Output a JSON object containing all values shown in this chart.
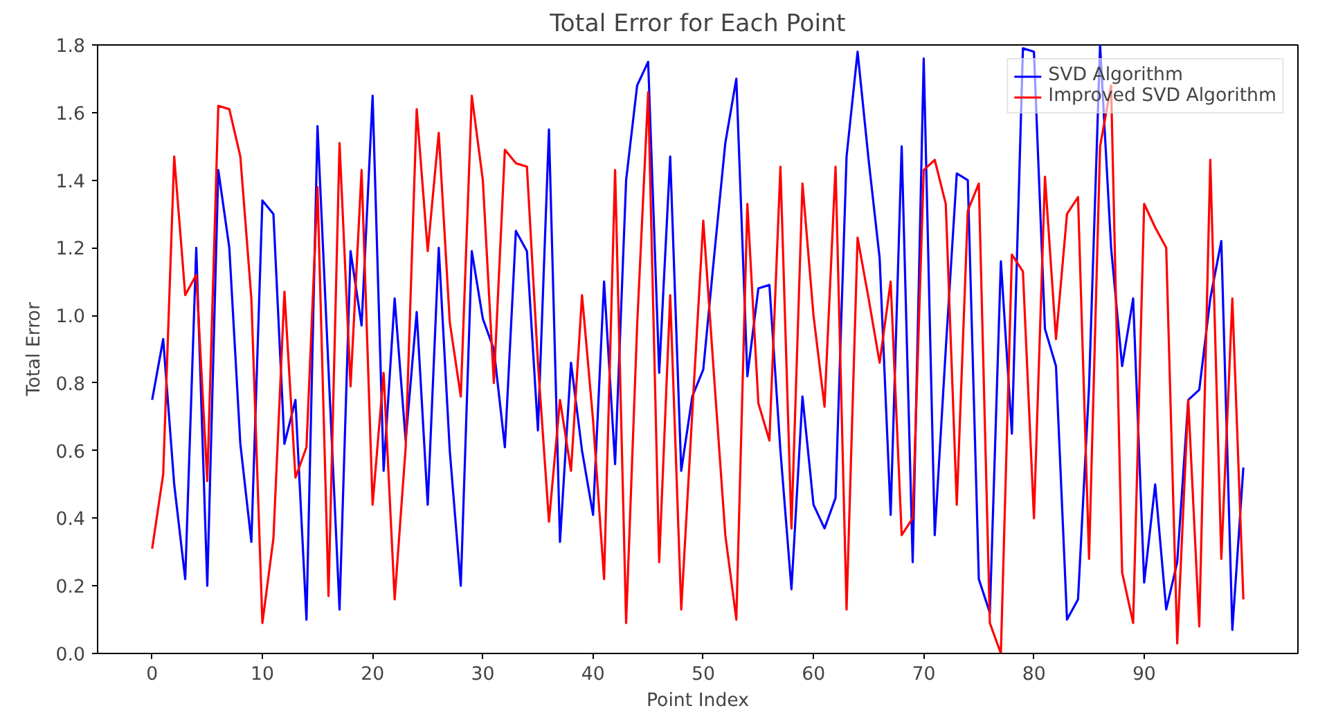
{
  "chart_data": {
    "type": "line",
    "title": "Total Error for Each Point",
    "xlabel": "Point Index",
    "ylabel": "Total Error",
    "x": [
      0,
      1,
      2,
      3,
      4,
      5,
      6,
      7,
      8,
      9,
      10,
      11,
      12,
      13,
      14,
      15,
      16,
      17,
      18,
      19,
      20,
      21,
      22,
      23,
      24,
      25,
      26,
      27,
      28,
      29,
      30,
      31,
      32,
      33,
      34,
      35,
      36,
      37,
      38,
      39,
      40,
      41,
      42,
      43,
      44,
      45,
      46,
      47,
      48,
      49,
      50,
      51,
      52,
      53,
      54,
      55,
      56,
      57,
      58,
      59,
      60,
      61,
      62,
      63,
      64,
      65,
      66,
      67,
      68,
      69,
      70,
      71,
      72,
      73,
      74,
      75,
      76,
      77,
      78,
      79,
      80,
      81,
      82,
      83,
      84,
      85,
      86,
      87,
      88,
      89,
      90,
      91,
      92,
      93,
      94,
      95,
      96,
      97,
      98,
      99
    ],
    "series": [
      {
        "name": "SVD Algorithm",
        "color": "#0000ff",
        "values": [
          0.75,
          0.93,
          0.5,
          0.22,
          1.2,
          0.2,
          1.43,
          1.2,
          0.62,
          0.33,
          1.34,
          1.3,
          0.62,
          0.75,
          0.1,
          1.56,
          0.84,
          0.13,
          1.19,
          0.97,
          1.65,
          0.54,
          1.05,
          0.63,
          1.01,
          0.44,
          1.2,
          0.6,
          0.2,
          1.19,
          0.99,
          0.9,
          0.61,
          1.25,
          1.19,
          0.66,
          1.55,
          0.33,
          0.86,
          0.6,
          0.41,
          1.1,
          0.56,
          1.4,
          1.68,
          1.75,
          0.83,
          1.47,
          0.54,
          0.76,
          0.84,
          1.18,
          1.51,
          1.7,
          0.82,
          1.08,
          1.09,
          0.6,
          0.19,
          0.76,
          0.44,
          0.37,
          0.46,
          1.47,
          1.78,
          1.46,
          1.17,
          0.41,
          1.5,
          0.27,
          1.76,
          0.35,
          0.9,
          1.42,
          1.4,
          0.22,
          0.12,
          1.16,
          0.65,
          1.79,
          1.78,
          0.96,
          0.85,
          0.1,
          0.16,
          0.79,
          1.8,
          1.2,
          0.85,
          1.05,
          0.21,
          0.5,
          0.13,
          0.27,
          0.75,
          0.78,
          1.05,
          1.22,
          0.07,
          0.55
        ]
      },
      {
        "name": "Improved SVD Algorithm",
        "color": "#ff0000",
        "values": [
          0.31,
          0.53,
          1.47,
          1.06,
          1.12,
          0.51,
          1.62,
          1.61,
          1.47,
          1.05,
          0.09,
          0.34,
          1.07,
          0.52,
          0.61,
          1.38,
          0.17,
          1.51,
          0.79,
          1.43,
          0.44,
          0.83,
          0.16,
          0.61,
          1.61,
          1.19,
          1.54,
          0.98,
          0.76,
          1.65,
          1.4,
          0.8,
          1.49,
          1.45,
          1.44,
          0.86,
          0.39,
          0.75,
          0.54,
          1.06,
          0.69,
          0.22,
          1.43,
          0.09,
          0.97,
          1.66,
          0.27,
          1.06,
          0.13,
          0.71,
          1.28,
          0.81,
          0.35,
          0.1,
          1.33,
          0.74,
          0.63,
          1.44,
          0.37,
          1.39,
          1.0,
          0.73,
          1.44,
          0.13,
          1.23,
          1.05,
          0.86,
          1.1,
          0.35,
          0.4,
          1.43,
          1.46,
          1.33,
          0.44,
          1.31,
          1.39,
          0.09,
          0.0,
          1.18,
          1.13,
          0.4,
          1.41,
          0.93,
          1.3,
          1.35,
          0.28,
          1.5,
          1.68,
          0.24,
          0.09,
          1.33,
          1.26,
          1.2,
          0.03,
          0.75,
          0.08,
          1.46,
          0.28,
          1.05,
          0.16
        ]
      }
    ],
    "xlim": [
      -4.95,
      103.95
    ],
    "ylim": [
      0,
      1.8
    ],
    "xticks": [
      0,
      10,
      20,
      30,
      40,
      50,
      60,
      70,
      80,
      90
    ],
    "yticks": [
      {
        "value": 0,
        "label": "0.0"
      },
      {
        "value": 0.2,
        "label": "0.2"
      },
      {
        "value": 0.4,
        "label": "0.4"
      },
      {
        "value": 0.6,
        "label": "0.6"
      },
      {
        "value": 0.8,
        "label": "0.8"
      },
      {
        "value": 1.0,
        "label": "1.0"
      },
      {
        "value": 1.2,
        "label": "1.2"
      },
      {
        "value": 1.4,
        "label": "1.4"
      },
      {
        "value": 1.6,
        "label": "1.6"
      },
      {
        "value": 1.8,
        "label": "1.8"
      }
    ],
    "legend": "top right",
    "grid": false,
    "line_style": "solid"
  }
}
